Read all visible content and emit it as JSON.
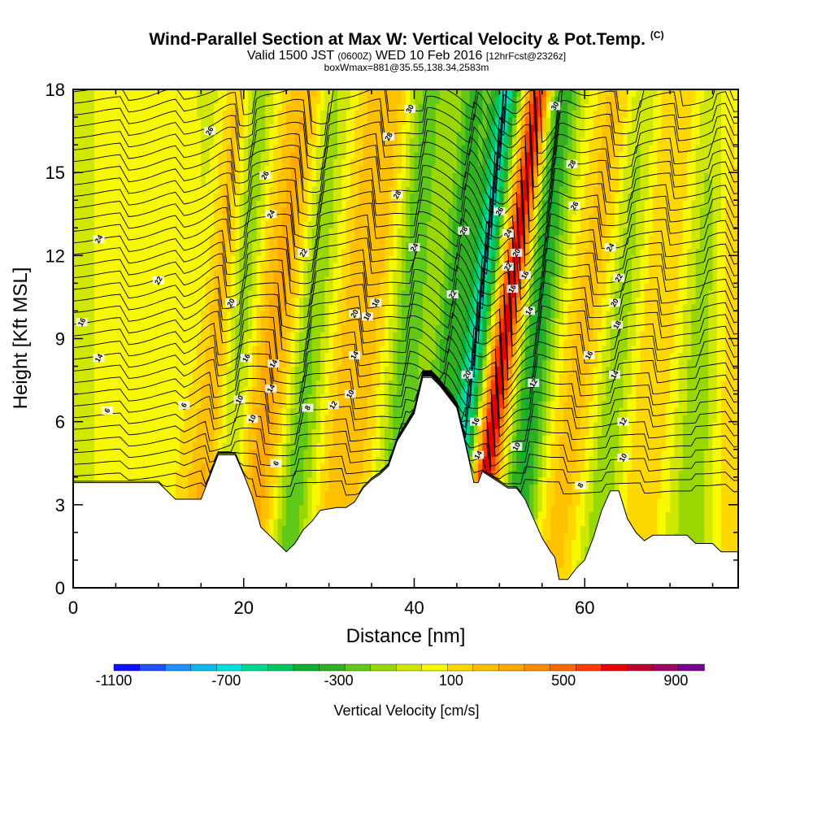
{
  "header": {
    "title": "Wind-Parallel Section at Max W: Vertical Velocity & Pot.Temp.",
    "title_mark": "(C)",
    "subtitle_a": "Valid 1500 JST",
    "subtitle_b": "(0600Z)",
    "subtitle_c": "WED 10 Feb 2016",
    "subtitle_d": "[12hrFcst@2326z]",
    "subtitle2": "boxWmax=881@35.55,138.34,2583m"
  },
  "chart_data": {
    "type": "heatmap",
    "xlabel": "Distance [nm]",
    "ylabel": "Height [Kft MSL]",
    "xlim": [
      0,
      78
    ],
    "ylim": [
      0,
      18
    ],
    "x_ticks": [
      0,
      20,
      40,
      60
    ],
    "x_tick_labels": [
      "0",
      "20",
      "40",
      "60"
    ],
    "y_ticks": [
      0,
      3,
      6,
      9,
      12,
      15,
      18
    ],
    "y_tick_labels": [
      "0",
      "3",
      "6",
      "9",
      "12",
      "15",
      "18"
    ],
    "colorbar": {
      "title": "Vertical Velocity [cm/s]",
      "min": -1100,
      "max": 1000,
      "step": 100,
      "tick_values": [
        -1100,
        -700,
        -300,
        100,
        500,
        900
      ],
      "tick_labels": [
        "-1100",
        "-700",
        "-300",
        "100",
        "500",
        "900"
      ],
      "colors": [
        "#1010ff",
        "#2050ff",
        "#1e90ff",
        "#10b8f0",
        "#00e0e0",
        "#00d890",
        "#00c860",
        "#10b030",
        "#30b020",
        "#60c818",
        "#98d800",
        "#d0e800",
        "#f8f800",
        "#ffd800",
        "#ffc000",
        "#ffa800",
        "#ff8c00",
        "#ff6a00",
        "#ff3c00",
        "#e80000",
        "#c00030",
        "#a00060",
        "#7a0090"
      ]
    },
    "terrain": [
      [
        0,
        3.8
      ],
      [
        4,
        3.8
      ],
      [
        8,
        3.8
      ],
      [
        10,
        3.8
      ],
      [
        11,
        3.5
      ],
      [
        12,
        3.2
      ],
      [
        14,
        3.2
      ],
      [
        15,
        3.2
      ],
      [
        16,
        4.0
      ],
      [
        17,
        4.8
      ],
      [
        18,
        4.8
      ],
      [
        19,
        4.8
      ],
      [
        20,
        4.1
      ],
      [
        21,
        3.3
      ],
      [
        22,
        2.2
      ],
      [
        23,
        1.9
      ],
      [
        24,
        1.6
      ],
      [
        25,
        1.3
      ],
      [
        26,
        1.6
      ],
      [
        27,
        2.1
      ],
      [
        28,
        2.4
      ],
      [
        29,
        2.8
      ],
      [
        31,
        2.9
      ],
      [
        32,
        2.9
      ],
      [
        33,
        3.1
      ],
      [
        34,
        3.6
      ],
      [
        35,
        3.9
      ],
      [
        36,
        4.1
      ],
      [
        37,
        4.4
      ],
      [
        38,
        5.3
      ],
      [
        39,
        5.8
      ],
      [
        40,
        6.3
      ],
      [
        41,
        7.6
      ],
      [
        42,
        7.6
      ],
      [
        43,
        7.3
      ],
      [
        44,
        6.9
      ],
      [
        45,
        6.5
      ],
      [
        46,
        5.2
      ],
      [
        47,
        3.8
      ],
      [
        47.5,
        3.8
      ],
      [
        48,
        4.2
      ],
      [
        49,
        4.0
      ],
      [
        50,
        3.8
      ],
      [
        51,
        3.6
      ],
      [
        52,
        3.6
      ],
      [
        53,
        3.2
      ],
      [
        54,
        2.5
      ],
      [
        55,
        1.8
      ],
      [
        56,
        1.3
      ],
      [
        56.5,
        1.1
      ],
      [
        57,
        0.3
      ],
      [
        58,
        0.3
      ],
      [
        59,
        0.7
      ],
      [
        60,
        1.0
      ],
      [
        61,
        1.8
      ],
      [
        62,
        2.8
      ],
      [
        63,
        3.5
      ],
      [
        64,
        3.5
      ],
      [
        65,
        2.5
      ],
      [
        66,
        2.0
      ],
      [
        67,
        1.7
      ],
      [
        68,
        1.9
      ],
      [
        70,
        1.9
      ],
      [
        72,
        1.9
      ],
      [
        73,
        1.6
      ],
      [
        75,
        1.6
      ],
      [
        76,
        1.3
      ],
      [
        78,
        1.3
      ]
    ],
    "vv_bands": [
      {
        "x": 6,
        "halfwidth": 3.5,
        "tilt": 0,
        "value": 160
      },
      {
        "x": 12.5,
        "halfwidth": 2.5,
        "tilt": 0,
        "value": 130
      },
      {
        "x": 16,
        "halfwidth": 2,
        "tilt": 0.3,
        "value": 320
      },
      {
        "x": 19,
        "halfwidth": 1.8,
        "tilt": 0.2,
        "value": -220
      },
      {
        "x": 22.5,
        "halfwidth": 3.5,
        "tilt": 0.45,
        "value": 420
      },
      {
        "x": 26.5,
        "halfwidth": 2.2,
        "tilt": 0.3,
        "value": -300
      },
      {
        "x": 32.5,
        "halfwidth": 3.5,
        "tilt": 0.35,
        "value": 360
      },
      {
        "x": 38.5,
        "halfwidth": 2,
        "tilt": 0.25,
        "value": -250
      },
      {
        "x": 43,
        "halfwidth": 1.6,
        "tilt": 0.35,
        "value": -300
      },
      {
        "x": 46,
        "halfwidth": 1.5,
        "tilt": 0.4,
        "value": -650
      },
      {
        "x": 49.3,
        "halfwidth": 1.6,
        "tilt": 0.45,
        "value": 860
      },
      {
        "x": 53.5,
        "halfwidth": 2,
        "tilt": 0.3,
        "value": -380
      },
      {
        "x": 58.5,
        "halfwidth": 3,
        "tilt": 0.45,
        "value": 300
      },
      {
        "x": 63,
        "halfwidth": 2,
        "tilt": 0.3,
        "value": -170
      },
      {
        "x": 67.5,
        "halfwidth": 3,
        "tilt": 0.3,
        "value": 260
      },
      {
        "x": 73,
        "halfwidth": 2,
        "tilt": 0.2,
        "value": -120
      },
      {
        "x": 77,
        "halfwidth": 2,
        "tilt": 0,
        "value": 200
      }
    ],
    "contour_labels": [
      {
        "x": 16,
        "y": 16.5,
        "text": "26"
      },
      {
        "x": 22.5,
        "y": 14.9,
        "text": "26"
      },
      {
        "x": 23.2,
        "y": 13.5,
        "text": "24"
      },
      {
        "x": 3,
        "y": 12.6,
        "text": "24"
      },
      {
        "x": 27,
        "y": 12.1,
        "text": "22"
      },
      {
        "x": 10,
        "y": 11.1,
        "text": "22"
      },
      {
        "x": 18.5,
        "y": 10.3,
        "text": "20"
      },
      {
        "x": 1,
        "y": 9.6,
        "text": "16"
      },
      {
        "x": 3,
        "y": 8.3,
        "text": "14"
      },
      {
        "x": 20.3,
        "y": 8.3,
        "text": "16"
      },
      {
        "x": 23.5,
        "y": 8.1,
        "text": "14"
      },
      {
        "x": 23.2,
        "y": 7.2,
        "text": "14"
      },
      {
        "x": 19.5,
        "y": 6.8,
        "text": "10"
      },
      {
        "x": 21,
        "y": 6.1,
        "text": "10"
      },
      {
        "x": 13,
        "y": 6.6,
        "text": "6"
      },
      {
        "x": 4,
        "y": 6.4,
        "text": "6"
      },
      {
        "x": 23.8,
        "y": 4.5,
        "text": "6"
      },
      {
        "x": 27.5,
        "y": 6.5,
        "text": "8"
      },
      {
        "x": 30.5,
        "y": 6.6,
        "text": "12"
      },
      {
        "x": 32.5,
        "y": 7.0,
        "text": "10"
      },
      {
        "x": 33,
        "y": 8.4,
        "text": "14"
      },
      {
        "x": 34.5,
        "y": 9.8,
        "text": "18"
      },
      {
        "x": 33,
        "y": 9.9,
        "text": "20"
      },
      {
        "x": 35.5,
        "y": 10.3,
        "text": "16"
      },
      {
        "x": 37,
        "y": 16.3,
        "text": "28"
      },
      {
        "x": 38,
        "y": 14.2,
        "text": "28"
      },
      {
        "x": 39.5,
        "y": 17.3,
        "text": "30"
      },
      {
        "x": 40,
        "y": 12.3,
        "text": "24"
      },
      {
        "x": 45.8,
        "y": 12.9,
        "text": "28"
      },
      {
        "x": 44.5,
        "y": 10.6,
        "text": "22"
      },
      {
        "x": 46.2,
        "y": 7.7,
        "text": "20"
      },
      {
        "x": 47.2,
        "y": 6.0,
        "text": "16"
      },
      {
        "x": 47.5,
        "y": 4.8,
        "text": "14"
      },
      {
        "x": 50,
        "y": 13.6,
        "text": "26"
      },
      {
        "x": 51,
        "y": 12.8,
        "text": "24"
      },
      {
        "x": 52,
        "y": 12.1,
        "text": "20"
      },
      {
        "x": 51,
        "y": 11.6,
        "text": "22"
      },
      {
        "x": 53,
        "y": 11.3,
        "text": "16"
      },
      {
        "x": 51.5,
        "y": 10.8,
        "text": "16"
      },
      {
        "x": 53.5,
        "y": 10.0,
        "text": "14"
      },
      {
        "x": 54,
        "y": 7.4,
        "text": "12"
      },
      {
        "x": 52,
        "y": 5.1,
        "text": "10"
      },
      {
        "x": 59.5,
        "y": 3.7,
        "text": "8"
      },
      {
        "x": 56.5,
        "y": 17.4,
        "text": "30"
      },
      {
        "x": 58.5,
        "y": 15.3,
        "text": "28"
      },
      {
        "x": 58.8,
        "y": 13.8,
        "text": "26"
      },
      {
        "x": 63,
        "y": 12.3,
        "text": "24"
      },
      {
        "x": 64,
        "y": 11.2,
        "text": "22"
      },
      {
        "x": 63.5,
        "y": 10.3,
        "text": "20"
      },
      {
        "x": 63.8,
        "y": 9.5,
        "text": "18"
      },
      {
        "x": 60.5,
        "y": 8.4,
        "text": "16"
      },
      {
        "x": 63.5,
        "y": 7.7,
        "text": "14"
      },
      {
        "x": 64.5,
        "y": 6.0,
        "text": "12"
      },
      {
        "x": 64.5,
        "y": 4.7,
        "text": "10"
      }
    ]
  }
}
